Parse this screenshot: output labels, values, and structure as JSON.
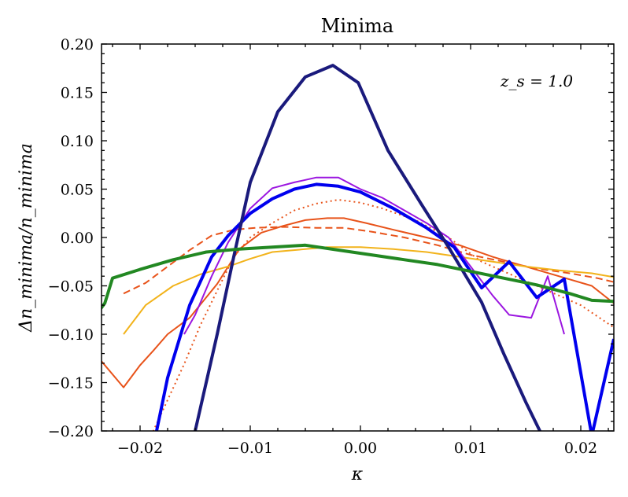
{
  "chart_data": {
    "type": "line",
    "title": "Minima",
    "xlabel": "κ",
    "ylabel": "Δn_minima/n_minima",
    "annotation": "z_s = 1.0",
    "xlim": [
      -0.0235,
      0.023
    ],
    "ylim": [
      -0.2,
      0.2
    ],
    "xticks": [
      -0.02,
      -0.01,
      0.0,
      0.01,
      0.02
    ],
    "xtick_labels": [
      "−0.02",
      "−0.01",
      "0.00",
      "0.01",
      "0.02"
    ],
    "yticks": [
      -0.2,
      -0.15,
      -0.1,
      -0.05,
      0.0,
      0.05,
      0.1,
      0.15,
      0.2
    ],
    "ytick_labels": [
      "−0.20",
      "−0.15",
      "−0.10",
      "−0.05",
      "0.00",
      "0.05",
      "0.10",
      "0.15",
      "0.20"
    ],
    "grid": false,
    "legend": "none",
    "series": [
      {
        "color": "#e8531a",
        "width": 2,
        "dash": "none",
        "x": [
          -0.0235,
          -0.0215,
          -0.02,
          -0.0188,
          -0.0175,
          -0.0155,
          -0.013,
          -0.011,
          -0.009,
          -0.007,
          -0.005,
          -0.003,
          -0.0015,
          0.0005,
          0.003,
          0.006,
          0.009,
          0.012,
          0.015,
          0.018,
          0.021,
          0.023
        ],
        "y": [
          -0.128,
          -0.155,
          -0.132,
          -0.117,
          -0.1,
          -0.083,
          -0.048,
          -0.012,
          0.005,
          0.012,
          0.018,
          0.02,
          0.02,
          0.015,
          0.008,
          0.0,
          -0.008,
          -0.02,
          -0.03,
          -0.04,
          -0.05,
          -0.068
        ]
      },
      {
        "color": "#e8531a",
        "width": 2,
        "dash": "9,5",
        "x": [
          -0.0215,
          -0.0195,
          -0.0175,
          -0.0155,
          -0.0135,
          -0.0115,
          -0.0095,
          -0.007,
          -0.004,
          -0.0015,
          0.001,
          0.004,
          0.007,
          0.01,
          0.013,
          0.016,
          0.019,
          0.0215,
          0.023
        ],
        "y": [
          -0.058,
          -0.047,
          -0.03,
          -0.013,
          0.002,
          0.008,
          0.01,
          0.011,
          0.01,
          0.01,
          0.006,
          0.0,
          -0.008,
          -0.018,
          -0.025,
          -0.032,
          -0.037,
          -0.042,
          -0.046
        ]
      },
      {
        "color": "#e8531a",
        "width": 2,
        "dash": "2,4",
        "x": [
          -0.019,
          -0.0175,
          -0.016,
          -0.0145,
          -0.013,
          -0.0115,
          -0.01,
          -0.008,
          -0.006,
          -0.004,
          -0.002,
          0.0,
          0.002,
          0.005,
          0.008,
          0.011,
          0.014,
          0.017,
          0.02,
          0.023
        ],
        "y": [
          -0.205,
          -0.168,
          -0.131,
          -0.09,
          -0.055,
          -0.02,
          0.0,
          0.015,
          0.028,
          0.035,
          0.039,
          0.036,
          0.03,
          0.018,
          0.0,
          -0.025,
          -0.04,
          -0.055,
          -0.07,
          -0.093
        ]
      },
      {
        "color": "#f2b31b",
        "width": 2,
        "dash": "none",
        "x": [
          -0.0215,
          -0.0195,
          -0.017,
          -0.0145,
          -0.012,
          -0.01,
          -0.008,
          -0.005,
          -0.003,
          0.0,
          0.003,
          0.006,
          0.009,
          0.012,
          0.015,
          0.018,
          0.021,
          0.023
        ],
        "y": [
          -0.1,
          -0.07,
          -0.05,
          -0.038,
          -0.03,
          -0.022,
          -0.015,
          -0.012,
          -0.01,
          -0.01,
          -0.012,
          -0.015,
          -0.02,
          -0.025,
          -0.03,
          -0.034,
          -0.037,
          -0.041
        ]
      },
      {
        "color": "#9b16e0",
        "width": 2,
        "dash": "none",
        "x": [
          -0.016,
          -0.015,
          -0.0135,
          -0.012,
          -0.01,
          -0.008,
          -0.006,
          -0.004,
          -0.002,
          0.0,
          0.002,
          0.004,
          0.006,
          0.008,
          0.01,
          0.012,
          0.0135,
          0.0155,
          0.017,
          0.0185
        ],
        "y": [
          -0.1,
          -0.08,
          -0.04,
          -0.005,
          0.03,
          0.051,
          0.057,
          0.062,
          0.062,
          0.05,
          0.041,
          0.028,
          0.015,
          0.0,
          -0.03,
          -0.06,
          -0.08,
          -0.083,
          -0.04,
          -0.1
        ]
      },
      {
        "color": "#0000ee",
        "width": 4,
        "dash": "none",
        "x": [
          -0.0195,
          -0.0175,
          -0.0155,
          -0.0135,
          -0.012,
          -0.01,
          -0.008,
          -0.006,
          -0.004,
          -0.002,
          0.0,
          0.003,
          0.006,
          0.0085,
          0.011,
          0.0135,
          0.016,
          0.0185,
          0.021,
          0.023
        ],
        "y": [
          -0.255,
          -0.145,
          -0.07,
          -0.02,
          0.002,
          0.025,
          0.04,
          0.05,
          0.055,
          0.053,
          0.047,
          0.03,
          0.01,
          -0.01,
          -0.052,
          -0.025,
          -0.062,
          -0.043,
          -0.205,
          -0.105
        ]
      },
      {
        "color": "#1a1a7c",
        "width": 4,
        "dash": "none",
        "x": [
          -0.0165,
          -0.015,
          -0.013,
          -0.0115,
          -0.01,
          -0.0075,
          -0.005,
          -0.0025,
          -0.0002,
          0.0025,
          0.0055,
          0.008,
          0.011,
          0.013,
          0.015,
          0.0165,
          0.0175
        ],
        "y": [
          -0.28,
          -0.2,
          -0.1,
          -0.02,
          0.057,
          0.13,
          0.166,
          0.178,
          0.16,
          0.09,
          0.035,
          -0.01,
          -0.067,
          -0.12,
          -0.17,
          -0.205,
          -0.235
        ]
      },
      {
        "color": "#228822",
        "width": 4,
        "dash": "none",
        "x": [
          -0.024,
          -0.0232,
          -0.0225,
          -0.02,
          -0.017,
          -0.014,
          -0.011,
          -0.008,
          -0.005,
          -0.002,
          0.001,
          0.004,
          0.007,
          0.01,
          0.013,
          0.016,
          0.019,
          0.021,
          0.023
        ],
        "y": [
          -0.08,
          -0.068,
          -0.042,
          -0.033,
          -0.023,
          -0.015,
          -0.012,
          -0.01,
          -0.008,
          -0.013,
          -0.018,
          -0.023,
          -0.028,
          -0.035,
          -0.042,
          -0.049,
          -0.058,
          -0.065,
          -0.066
        ]
      }
    ]
  }
}
